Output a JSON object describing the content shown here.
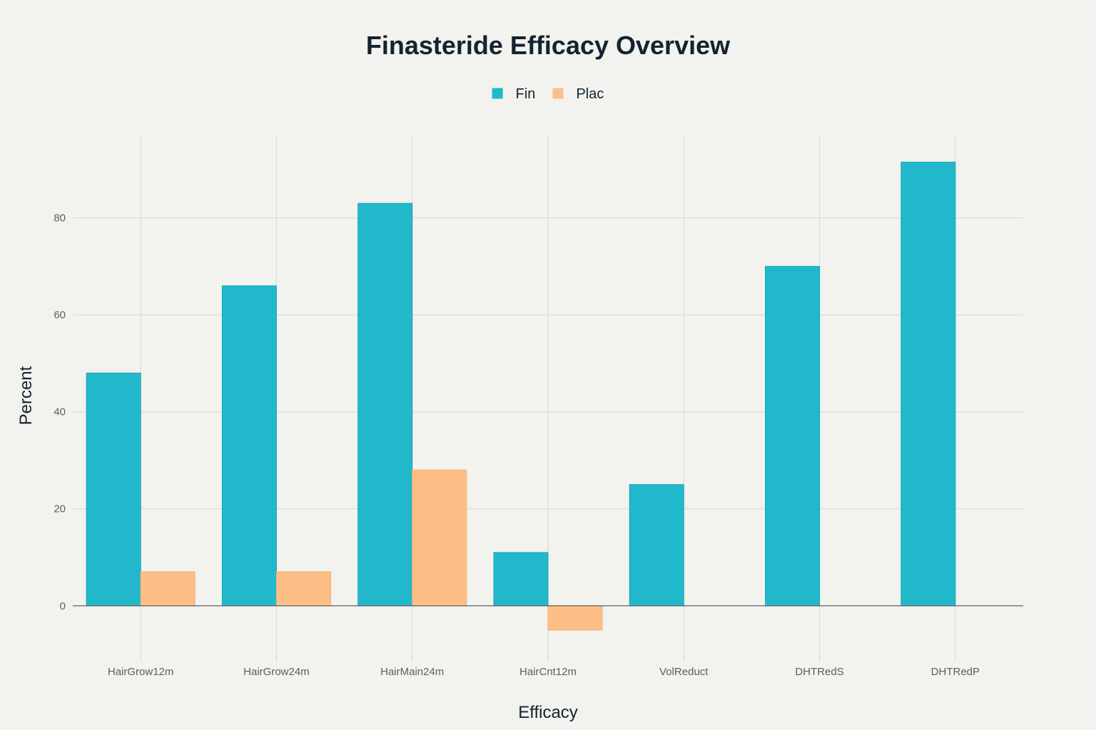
{
  "chart_data": {
    "type": "bar",
    "title": "Finasteride Efficacy Overview",
    "xlabel": "Efficacy",
    "ylabel": "Percent",
    "categories": [
      "HairGrow12m",
      "HairGrow24m",
      "HairMain24m",
      "HairCnt12m",
      "VolReduct",
      "DHTRedS",
      "DHTRedP"
    ],
    "series": [
      {
        "name": "Fin",
        "color": "#21b8cc",
        "values": [
          48,
          66,
          83,
          11,
          25,
          70,
          91.5
        ]
      },
      {
        "name": "Plac",
        "color": "#fdbf86",
        "values": [
          7,
          7,
          28,
          -5,
          0,
          0,
          0
        ]
      }
    ],
    "ylim": [
      -11.5,
      97
    ],
    "yticks": [
      0,
      20,
      40,
      60,
      80
    ],
    "grid": true,
    "legend": "top-center"
  }
}
